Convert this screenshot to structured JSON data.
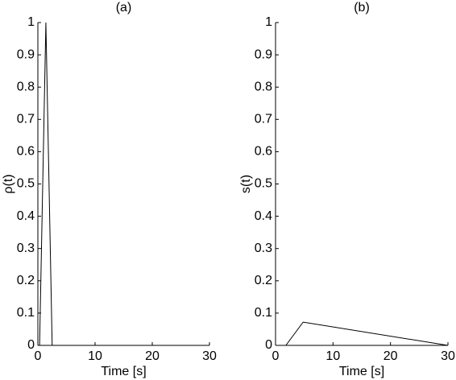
{
  "chart_data": [
    {
      "type": "line",
      "title": "(a)",
      "x_label": "Time [s]",
      "y_label": "ρ(t)",
      "x": [
        0.3,
        1.4,
        2.5,
        30
      ],
      "series": [
        {
          "color": "#000000",
          "values": [
            0,
            1,
            0,
            0
          ]
        }
      ],
      "xlim": [
        0,
        30
      ],
      "xticks": [
        0,
        10,
        20,
        30
      ],
      "ylim": [
        0,
        1
      ],
      "yticks": [
        0,
        0.1,
        0.2,
        0.3,
        0.4,
        0.5,
        0.6,
        0.7,
        0.8,
        0.9,
        1
      ]
    },
    {
      "type": "line",
      "title": "(b)",
      "x_label": "Time [s]",
      "y_label": "s(t)",
      "x": [
        0,
        1.8,
        4.8,
        30
      ],
      "series": [
        {
          "color": "#000000",
          "values": [
            0,
            0,
            0.072,
            0
          ]
        }
      ],
      "xlim": [
        0,
        30
      ],
      "xticks": [
        0,
        10,
        20,
        30
      ],
      "ylim": [
        0,
        1
      ],
      "yticks": [
        0,
        0.1,
        0.2,
        0.3,
        0.4,
        0.5,
        0.6,
        0.7,
        0.8,
        0.9,
        1
      ]
    }
  ]
}
